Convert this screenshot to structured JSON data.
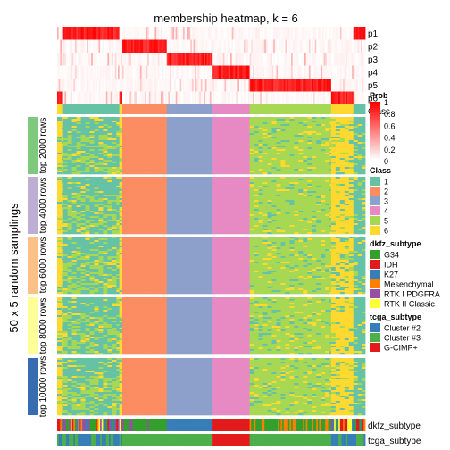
{
  "chart_data": {
    "type": "heatmap",
    "title": "membership heatmap, k = 6",
    "side_label": "50 x 5 random samplings",
    "membership_rows": [
      "p1",
      "p2",
      "p3",
      "p4",
      "p5",
      "p6"
    ],
    "class_row_label": "Class",
    "class_order": [
      1,
      2,
      3,
      4,
      5,
      6,
      1
    ],
    "column_groups": [
      {
        "class": 6,
        "count": 4
      },
      {
        "class": 1,
        "count": 38
      },
      {
        "class": 6,
        "count": 2
      },
      {
        "class": 2,
        "count": 30
      },
      {
        "class": 3,
        "count": 31
      },
      {
        "class": 4,
        "count": 25
      },
      {
        "class": 5,
        "count": 55
      },
      {
        "class": 6,
        "count": 15
      },
      {
        "class": 1,
        "count": 8
      }
    ],
    "row_groups": [
      {
        "label": "top 2000 rows",
        "color": "#7fc97f"
      },
      {
        "label": "top 4000 rows",
        "color": "#beaed4"
      },
      {
        "label": "top 6000 rows",
        "color": "#fdc086"
      },
      {
        "label": "top 8000 rows",
        "color": "#ffff99"
      },
      {
        "label": "top 10000 rows",
        "color": "#386cb0"
      }
    ],
    "prob_legend": {
      "title": "Prob",
      "ticks": [
        "1",
        "0.8",
        "0.6",
        "0.4",
        "0.2",
        "0"
      ]
    },
    "class_legend": {
      "title": "Class",
      "items": [
        {
          "label": "1",
          "color": "#66c2a5"
        },
        {
          "label": "2",
          "color": "#fc8d62"
        },
        {
          "label": "3",
          "color": "#8da0cb"
        },
        {
          "label": "4",
          "color": "#e78ac3"
        },
        {
          "label": "5",
          "color": "#a6d854"
        },
        {
          "label": "6",
          "color": "#ffd92f"
        }
      ]
    },
    "dkfz_legend": {
      "title": "dkfz_subtype",
      "items": [
        {
          "label": "G34",
          "color": "#33a02c"
        },
        {
          "label": "IDH",
          "color": "#e31a1c"
        },
        {
          "label": "K27",
          "color": "#377eb8"
        },
        {
          "label": "Mesenchymal",
          "color": "#ff7f00"
        },
        {
          "label": "RTK I PDGFRA",
          "color": "#984ea3"
        },
        {
          "label": "RTK II Classic",
          "color": "#ffff33"
        }
      ]
    },
    "tcga_legend": {
      "title": "tcga_subtype",
      "items": [
        {
          "label": "Cluster #2",
          "color": "#377eb8"
        },
        {
          "label": "Cluster #3",
          "color": "#4daf4a"
        },
        {
          "label": "G-CIMP+",
          "color": "#e41a1c"
        }
      ]
    },
    "bottom_labels": {
      "dkfz": "dkfz_subtype",
      "tcga": "tcga_subtype"
    }
  }
}
